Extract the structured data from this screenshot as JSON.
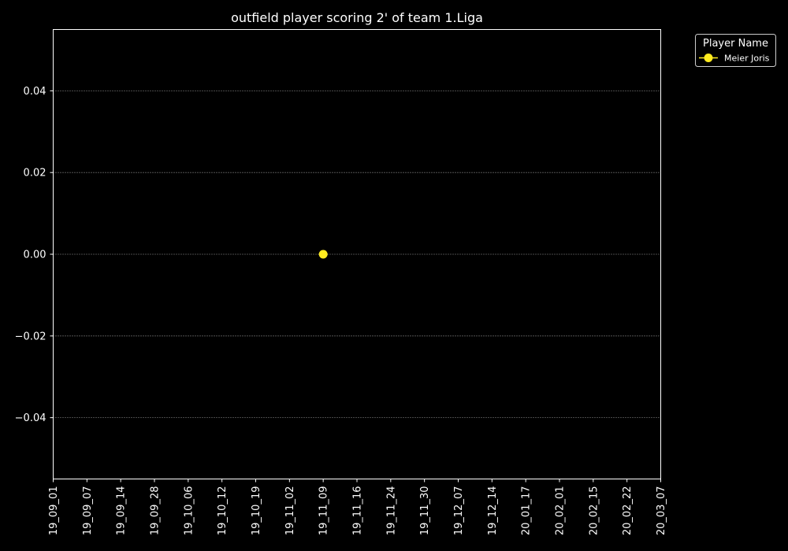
{
  "chart_data": {
    "type": "line",
    "title": "outfield player scoring 2' of team 1.Liga",
    "xlabel": "",
    "ylabel": "",
    "categories": [
      "19_09_01",
      "19_09_07",
      "19_09_14",
      "19_09_28",
      "19_10_06",
      "19_10_12",
      "19_10_19",
      "19_11_02",
      "19_11_09",
      "19_11_16",
      "19_11_24",
      "19_11_30",
      "19_12_07",
      "19_12_14",
      "20_01_17",
      "20_02_01",
      "20_02_15",
      "20_02_22",
      "20_03_07"
    ],
    "ylim": [
      -0.055,
      0.055
    ],
    "yticks": [
      {
        "value": 0.04,
        "label": "0.04"
      },
      {
        "value": 0.02,
        "label": "0.02"
      },
      {
        "value": 0.0,
        "label": "0.00"
      },
      {
        "value": -0.02,
        "label": "−0.02"
      },
      {
        "value": -0.04,
        "label": "−0.04"
      }
    ],
    "grid": "y-dotted",
    "legend": {
      "title": "Player Name",
      "placement": "outside-top-right"
    },
    "series": [
      {
        "name": "Meier Joris",
        "color": "#ffeb1f",
        "points": [
          {
            "x": "19_11_09",
            "y": 0
          }
        ]
      }
    ]
  }
}
